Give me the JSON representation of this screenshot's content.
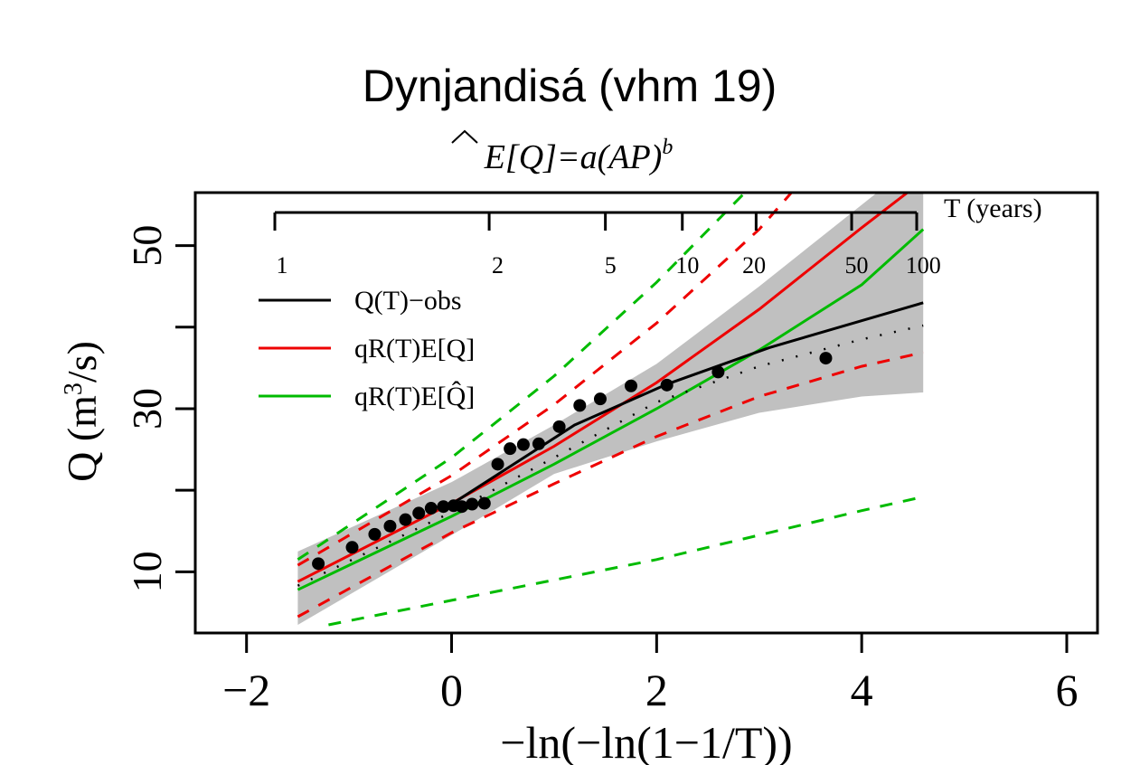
{
  "chart_data": {
    "type": "line",
    "title": "Dynjandisá (vhm 19)",
    "subtitle": {
      "prefix": "E[",
      "hat_symbol": "Q",
      "suffix": "]=a(AP)",
      "superscript": "b"
    },
    "xlabel": "−ln(−ln(1−1/T))",
    "ylabel": {
      "prefix": "Q (m",
      "superscript": "3",
      "suffix": "/s)"
    },
    "xlim": [
      -2.5,
      6.3
    ],
    "ylim": [
      2.5,
      56.5
    ],
    "x_ticks": [
      {
        "value": -2,
        "label": "−2"
      },
      {
        "value": 0,
        "label": "0"
      },
      {
        "value": 2,
        "label": "2"
      },
      {
        "value": 4,
        "label": "4"
      },
      {
        "value": 6,
        "label": "6"
      }
    ],
    "y_ticks": [
      {
        "value": 10,
        "label": "10"
      },
      {
        "value": 20,
        "label": ""
      },
      {
        "value": 30,
        "label": "30"
      },
      {
        "value": 40,
        "label": ""
      },
      {
        "value": 50,
        "label": "50"
      }
    ],
    "top_axis": {
      "label": "T (years)",
      "ticks": [
        {
          "T": 1,
          "label": "1"
        },
        {
          "T": 2,
          "label": "2"
        },
        {
          "T": 5,
          "label": "5"
        },
        {
          "T": 10,
          "label": "10"
        },
        {
          "T": 20,
          "label": "20"
        },
        {
          "T": 50,
          "label": "50"
        },
        {
          "T": 100,
          "label": "100"
        }
      ],
      "label_x": [
        -1.5,
        0.45,
        1.55,
        2.3,
        2.95,
        3.95,
        4.6
      ]
    },
    "legend": {
      "position": "top-left",
      "entries": [
        {
          "label": "Q(T)−obs",
          "color": "#000000"
        },
        {
          "label": "q_R(T)E[Q]",
          "sub": "R",
          "color": "#ee0000"
        },
        {
          "label": "q_R(T)E[Q̂]",
          "sub": "R",
          "color": "#00bb00"
        }
      ],
      "text": [
        "Q(T)−obs",
        "qR(T)E[Q]",
        "qR(T)E[Q̂]"
      ]
    },
    "colors": {
      "obs": "#000000",
      "red": "#ee0000",
      "green": "#00bb00",
      "band": "#c0c0c0"
    },
    "points": [
      {
        "x": -1.3,
        "y": 11.0
      },
      {
        "x": -0.97,
        "y": 13.0
      },
      {
        "x": -0.75,
        "y": 14.6
      },
      {
        "x": -0.6,
        "y": 15.6
      },
      {
        "x": -0.45,
        "y": 16.4
      },
      {
        "x": -0.32,
        "y": 17.2
      },
      {
        "x": -0.2,
        "y": 17.8
      },
      {
        "x": -0.08,
        "y": 18.0
      },
      {
        "x": 0.02,
        "y": 18.1
      },
      {
        "x": 0.1,
        "y": 18.0
      },
      {
        "x": 0.2,
        "y": 18.3
      },
      {
        "x": 0.32,
        "y": 18.4
      },
      {
        "x": 0.45,
        "y": 23.2
      },
      {
        "x": 0.57,
        "y": 25.1
      },
      {
        "x": 0.7,
        "y": 25.6
      },
      {
        "x": 0.85,
        "y": 25.7
      },
      {
        "x": 1.05,
        "y": 27.8
      },
      {
        "x": 1.25,
        "y": 30.4
      },
      {
        "x": 1.45,
        "y": 31.2
      },
      {
        "x": 1.75,
        "y": 32.8
      },
      {
        "x": 2.1,
        "y": 32.9
      },
      {
        "x": 2.6,
        "y": 34.5
      },
      {
        "x": 3.65,
        "y": 36.2
      }
    ],
    "obs_line": {
      "x": [
        0.0,
        1.2,
        2.1,
        3.1,
        4.6
      ],
      "y": [
        18.3,
        28.0,
        33.0,
        37.5,
        43.0
      ]
    },
    "band": {
      "x": [
        -1.5,
        0.0,
        1.0,
        2.0,
        3.0,
        4.0,
        4.6
      ],
      "upper": [
        12.5,
        21.0,
        28.0,
        35.5,
        45.0,
        55.0,
        61.0
      ],
      "lower": [
        3.5,
        14.5,
        22.0,
        26.0,
        29.5,
        31.5,
        32.0
      ]
    },
    "series": [
      {
        "name": "q_R(T)E[Q]",
        "role": "main",
        "color": "#ee0000",
        "dash": false,
        "x": [
          -1.5,
          0.0,
          1.0,
          2.0,
          3.0,
          4.0,
          4.6
        ],
        "y": [
          8.8,
          18.4,
          25.4,
          33.2,
          42.2,
          52.2,
          58.0
        ]
      },
      {
        "name": "q_R(T)E[Q]",
        "role": "upper",
        "color": "#ee0000",
        "dash": true,
        "x": [
          -1.5,
          0.0,
          1.0,
          2.0,
          3.0,
          3.35
        ],
        "y": [
          10.8,
          21.8,
          30.5,
          40.5,
          52.0,
          57.0
        ]
      },
      {
        "name": "q_R(T)E[Q]",
        "role": "lower",
        "color": "#ee0000",
        "dash": true,
        "x": [
          -1.5,
          0.0,
          1.0,
          2.0,
          3.0,
          4.0,
          4.6
        ],
        "y": [
          4.5,
          14.8,
          20.8,
          26.6,
          31.5,
          35.2,
          36.9
        ]
      },
      {
        "name": "q_R(T)E[Q̂]",
        "role": "main",
        "color": "#00bb00",
        "dash": false,
        "x": [
          -1.5,
          0.0,
          1.0,
          2.0,
          3.0,
          4.0,
          4.6
        ],
        "y": [
          7.8,
          16.8,
          23.2,
          30.0,
          37.2,
          45.2,
          52.0
        ]
      },
      {
        "name": "q_R(T)E[Q̂]",
        "role": "upper",
        "color": "#00bb00",
        "dash": true,
        "x": [
          -1.5,
          0.0,
          1.0,
          2.0,
          2.9
        ],
        "y": [
          11.5,
          24.0,
          34.0,
          45.5,
          57.0
        ]
      },
      {
        "name": "q_R(T)E[Q̂]",
        "role": "lower",
        "color": "#00bb00",
        "dash": true,
        "x": [
          -1.2,
          0.0,
          1.0,
          2.0,
          3.0,
          4.0,
          4.6
        ],
        "y": [
          3.5,
          6.5,
          9.0,
          11.5,
          14.5,
          17.5,
          19.2
        ]
      },
      {
        "name": "dotted",
        "role": "envelope",
        "color": "#000000",
        "dash": "dot",
        "x": [
          -1.5,
          0.0,
          1.0,
          2.0,
          3.0,
          4.0,
          4.6
        ],
        "y": [
          8.3,
          17.3,
          24.0,
          30.8,
          35.2,
          38.5,
          40.2
        ]
      }
    ]
  }
}
